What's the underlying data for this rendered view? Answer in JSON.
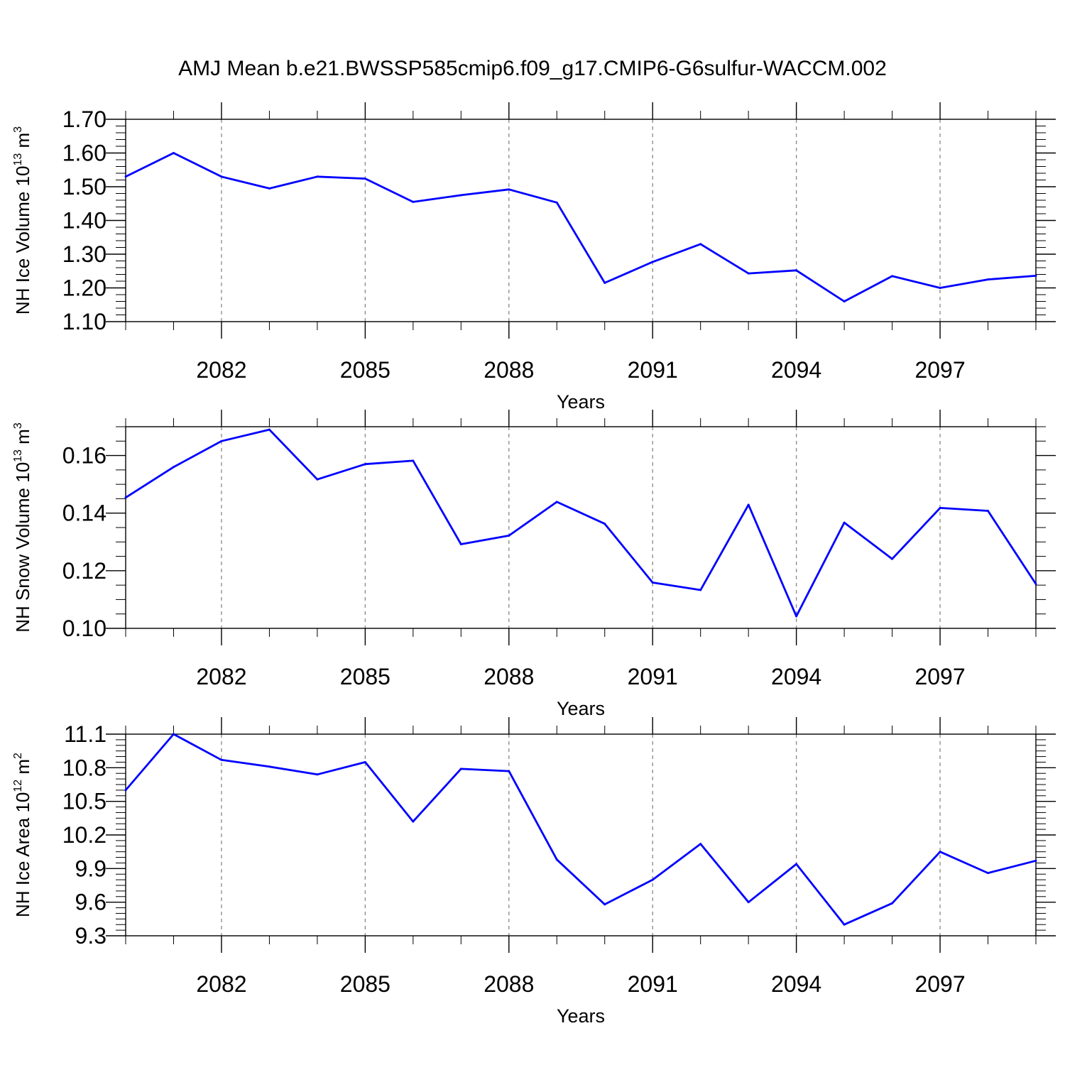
{
  "title": "AMJ Mean b.e21.BWSSP585cmip6.f09_g17.CMIP6-G6sulfur-WACCM.002",
  "colors": {
    "series": "#0000ff",
    "grid": "#888888",
    "axis": "#000000"
  },
  "chart_data": [
    {
      "type": "line",
      "ylabel_main": "NH Ice Volume 10",
      "ylabel_exp": "13",
      "ylabel_unit": " m",
      "ylabel_unit_exp": "3",
      "xlabel": "Years",
      "xlim": [
        2080,
        2099
      ],
      "ylim": [
        1.1,
        1.7
      ],
      "xticks": [
        2082,
        2085,
        2088,
        2091,
        2094,
        2097
      ],
      "yticks": [
        1.1,
        1.2,
        1.3,
        1.4,
        1.5,
        1.6,
        1.7
      ],
      "ytick_labels": [
        "1.10",
        "1.20",
        "1.30",
        "1.40",
        "1.50",
        "1.60",
        "1.70"
      ],
      "minor_per_major": 5,
      "grid": "x-dashed",
      "x": [
        2080,
        2081,
        2082,
        2083,
        2084,
        2085,
        2086,
        2087,
        2088,
        2089,
        2090,
        2091,
        2092,
        2093,
        2094,
        2095,
        2096,
        2097,
        2098,
        2099
      ],
      "values": [
        1.53,
        1.6,
        1.53,
        1.495,
        1.53,
        1.524,
        1.455,
        1.475,
        1.492,
        1.453,
        1.215,
        1.277,
        1.33,
        1.243,
        1.252,
        1.16,
        1.235,
        1.2,
        1.225,
        1.236
      ]
    },
    {
      "type": "line",
      "ylabel_main": "NH Snow Volume 10",
      "ylabel_exp": "13",
      "ylabel_unit": " m",
      "ylabel_unit_exp": "3",
      "xlabel": "Years",
      "xlim": [
        2080,
        2099
      ],
      "ylim": [
        0.1,
        0.17
      ],
      "xticks": [
        2082,
        2085,
        2088,
        2091,
        2094,
        2097
      ],
      "yticks": [
        0.1,
        0.12,
        0.14,
        0.16
      ],
      "ytick_labels": [
        "0.10",
        "0.12",
        "0.14",
        "0.16"
      ],
      "minor_per_major": 4,
      "grid": "x-dashed",
      "x": [
        2080,
        2081,
        2082,
        2083,
        2084,
        2085,
        2086,
        2087,
        2088,
        2089,
        2090,
        2091,
        2092,
        2093,
        2094,
        2095,
        2096,
        2097,
        2098,
        2099
      ],
      "values": [
        0.1454,
        0.156,
        0.165,
        0.169,
        0.1517,
        0.157,
        0.1582,
        0.1292,
        0.1322,
        0.1439,
        0.1363,
        0.1159,
        0.1133,
        0.1429,
        0.1042,
        0.1367,
        0.1241,
        0.1418,
        0.1408,
        0.1154
      ]
    },
    {
      "type": "line",
      "ylabel_main": "NH Ice Area 10",
      "ylabel_exp": "12",
      "ylabel_unit": " m",
      "ylabel_unit_exp": "2",
      "xlabel": "Years",
      "xlim": [
        2080,
        2099
      ],
      "ylim": [
        9.3,
        11.1
      ],
      "xticks": [
        2082,
        2085,
        2088,
        2091,
        2094,
        2097
      ],
      "yticks": [
        9.3,
        9.6,
        9.9,
        10.2,
        10.5,
        10.8,
        11.1
      ],
      "ytick_labels": [
        "9.3",
        "9.6",
        "9.9",
        "10.2",
        "10.5",
        "10.8",
        "11.1"
      ],
      "minor_per_major": 6,
      "grid": "x-dashed",
      "x": [
        2080,
        2081,
        2082,
        2083,
        2084,
        2085,
        2086,
        2087,
        2088,
        2089,
        2090,
        2091,
        2092,
        2093,
        2094,
        2095,
        2096,
        2097,
        2098,
        2099
      ],
      "values": [
        10.6,
        11.1,
        10.87,
        10.81,
        10.74,
        10.85,
        10.32,
        10.79,
        10.77,
        9.98,
        9.58,
        9.8,
        10.12,
        9.6,
        9.94,
        9.4,
        9.59,
        10.05,
        9.86,
        9.97
      ]
    }
  ]
}
